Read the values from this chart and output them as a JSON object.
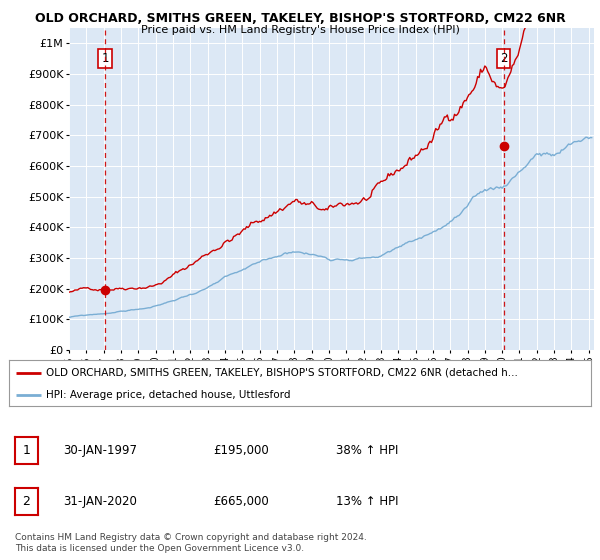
{
  "title_line1": "OLD ORCHARD, SMITHS GREEN, TAKELEY, BISHOP'S STORTFORD, CM22 6NR",
  "title_line2": "Price paid vs. HM Land Registry's House Price Index (HPI)",
  "ylabel_ticks": [
    "£0",
    "£100K",
    "£200K",
    "£300K",
    "£400K",
    "£500K",
    "£600K",
    "£700K",
    "£800K",
    "£900K",
    "£1M"
  ],
  "ytick_values": [
    0,
    100000,
    200000,
    300000,
    400000,
    500000,
    600000,
    700000,
    800000,
    900000,
    1000000
  ],
  "sale1_date": 1997.08,
  "sale1_price": 195000,
  "sale1_label": "1",
  "sale2_date": 2020.08,
  "sale2_price": 665000,
  "sale2_label": "2",
  "hpi_line_color": "#7aaed4",
  "price_line_color": "#cc0000",
  "sale_dot_color": "#cc0000",
  "dashed_line_color": "#cc0000",
  "plot_bg_color": "#dce8f5",
  "legend_label_red": "OLD ORCHARD, SMITHS GREEN, TAKELEY, BISHOP'S STORTFORD, CM22 6NR (detached h...",
  "legend_label_blue": "HPI: Average price, detached house, Uttlesford",
  "note1_num": "1",
  "note1_date": "30-JAN-1997",
  "note1_price": "£195,000",
  "note1_hpi": "38% ↑ HPI",
  "note2_num": "2",
  "note2_date": "31-JAN-2020",
  "note2_price": "£665,000",
  "note2_hpi": "13% ↑ HPI",
  "footer": "Contains HM Land Registry data © Crown copyright and database right 2024.\nThis data is licensed under the Open Government Licence v3.0."
}
